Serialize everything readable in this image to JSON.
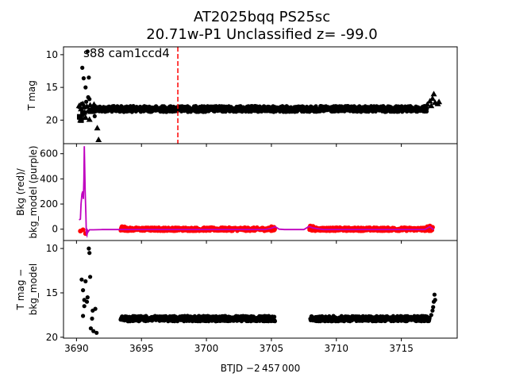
{
  "chart_data": {
    "type": "scatter",
    "title_line1": "AT2025bqq  PS25sc",
    "title_line2": "20.71w-P1 Unclassified z= -99.0",
    "annotation": "s88 cam1ccd4",
    "xlabel": "BTJD −2 457 000",
    "xlim": [
      3689.0,
      3719.3
    ],
    "xticks": [
      3690,
      3695,
      3700,
      3705,
      3710,
      3715
    ],
    "marker_time": 3697.8,
    "colors": {
      "lc": "#000000",
      "bkg": "#ff0000",
      "model": "#bf00bf",
      "marker": "#ff0000"
    },
    "panels": [
      {
        "ylabel": [
          "T mag"
        ],
        "ylim": [
          23.6,
          8.8
        ],
        "yticks": [
          10,
          15,
          20
        ],
        "series": [
          {
            "name": "",
            "marker": "circle",
            "color": "#000000",
            "points": [
              [
                3690.45,
                12.0
              ],
              [
                3690.55,
                13.6
              ],
              [
                3690.7,
                15.0
              ],
              [
                3690.95,
                13.5
              ],
              [
                3691.0,
                16.8
              ],
              [
                3690.85,
                9.5
              ],
              [
                3690.3,
                19.6
              ],
              [
                3690.6,
                19.0
              ],
              [
                3691.4,
                19.4
              ],
              [
                3690.2,
                18.0
              ],
              [
                3691.1,
                18.4
              ],
              [
                3690.75,
                17.2
              ],
              [
                3690.4,
                17.5
              ],
              [
                3690.9,
                16.5
              ],
              [
                3691.2,
                17.9
              ],
              [
                3691.3,
                18.1
              ],
              [
                3690.65,
                18.8
              ],
              [
                3691.5,
                18.0
              ]
            ]
          },
          {
            "name": "",
            "marker": "triangle",
            "color": "#000000",
            "points": [
              [
                3690.2,
                17.8
              ],
              [
                3690.35,
                18.3
              ],
              [
                3690.5,
                17.5
              ],
              [
                3690.6,
                18.8
              ],
              [
                3690.8,
                17.9
              ],
              [
                3690.9,
                18.6
              ],
              [
                3691.05,
                17.7
              ],
              [
                3691.2,
                18.2
              ],
              [
                3691.35,
                17.6
              ],
              [
                3690.4,
                19.2
              ],
              [
                3690.7,
                19.6
              ],
              [
                3691.0,
                19.9
              ],
              [
                3691.6,
                21.2
              ],
              [
                3691.7,
                23.0
              ],
              [
                3690.3,
                20.0
              ],
              [
                3691.5,
                18.0
              ],
              [
                3690.55,
                18.0
              ],
              [
                3691.1,
                18.7
              ]
            ]
          },
          {
            "name": "",
            "marker": "square",
            "color": "#000000",
            "points": [
              [
                3690.25,
                19.5
              ],
              [
                3690.35,
                20.0
              ],
              [
                3690.5,
                18.9
              ]
            ]
          },
          {
            "name": "",
            "marker": "triangle",
            "color": "#000000",
            "points": [
              [
                3717.0,
                17.6
              ],
              [
                3717.2,
                17.1
              ],
              [
                3717.4,
                16.7
              ],
              [
                3717.6,
                17.3
              ],
              [
                3717.8,
                17.5
              ],
              [
                3717.5,
                16.0
              ],
              [
                3717.3,
                17.8
              ],
              [
                3717.9,
                17.2
              ]
            ]
          }
        ],
        "band": {
          "x_start": 3691.3,
          "x_end": 3717.0,
          "y": 18.3,
          "spread": 0.45,
          "label": ""
        }
      },
      {
        "ylabel": [
          "Bkg (red)/",
          "bkg_model (purple)"
        ],
        "ylim": [
          -90,
          680
        ],
        "yticks": [
          0,
          200,
          400,
          600
        ],
        "segments": [
          {
            "x": [
              3693.4,
              3705.3
            ],
            "color": "#ff0000",
            "y": 0,
            "spread": 14
          },
          {
            "x": [
              3707.9,
              3717.4
            ],
            "color": "#ff0000",
            "y": 0,
            "spread": 14
          }
        ],
        "edge_points": [
          [
            3690.3,
            -15
          ],
          [
            3690.5,
            -5
          ],
          [
            3690.7,
            -35
          ],
          [
            3693.5,
            20
          ],
          [
            3693.7,
            18
          ],
          [
            3705.0,
            20
          ],
          [
            3705.2,
            15
          ],
          [
            3708.0,
            25
          ],
          [
            3708.2,
            22
          ],
          [
            3717.0,
            20
          ],
          [
            3717.2,
            25
          ],
          [
            3717.4,
            15
          ]
        ],
        "model_curve": [
          [
            3690.2,
            75
          ],
          [
            3690.3,
            80
          ],
          [
            3690.35,
            200
          ],
          [
            3690.42,
            280
          ],
          [
            3690.48,
            300
          ],
          [
            3690.53,
            240
          ],
          [
            3690.57,
            400
          ],
          [
            3690.6,
            660
          ],
          [
            3690.63,
            500
          ],
          [
            3690.67,
            300
          ],
          [
            3690.72,
            120
          ],
          [
            3690.76,
            -40
          ],
          [
            3690.8,
            -50
          ],
          [
            3690.85,
            -10
          ],
          [
            3690.9,
            -20
          ],
          [
            3691.0,
            -5
          ],
          [
            3691.3,
            -5
          ],
          [
            3692.0,
            -3
          ],
          [
            3693.4,
            -3
          ],
          [
            3694.0,
            -3
          ],
          [
            3700.0,
            -3
          ],
          [
            3704.5,
            -3
          ],
          [
            3705.0,
            8
          ],
          [
            3705.3,
            20
          ],
          [
            3705.6,
            0
          ],
          [
            3706.0,
            -3
          ],
          [
            3707.5,
            -3
          ],
          [
            3707.9,
            22
          ],
          [
            3708.2,
            10
          ],
          [
            3709.0,
            -3
          ],
          [
            3716.8,
            -3
          ],
          [
            3717.2,
            20
          ],
          [
            3717.5,
            -5
          ]
        ]
      },
      {
        "ylabel": [
          "T mag −",
          "bkg_model"
        ],
        "ylim": [
          20.1,
          9.1
        ],
        "yticks": [
          10,
          15,
          20
        ],
        "series": [
          {
            "name": "",
            "marker": "circle",
            "color": "#000000",
            "points": [
              [
                3690.4,
                13.5
              ],
              [
                3690.5,
                14.7
              ],
              [
                3690.6,
                15.8
              ],
              [
                3690.7,
                13.7
              ],
              [
                3690.8,
                16.0
              ],
              [
                3690.85,
                15.5
              ],
              [
                3690.95,
                10.0
              ],
              [
                3691.0,
                10.5
              ],
              [
                3691.05,
                13.2
              ],
              [
                3690.5,
                17.6
              ],
              [
                3690.6,
                16.5
              ],
              [
                3691.2,
                17.9
              ],
              [
                3691.3,
                19.3
              ],
              [
                3691.45,
                16.8
              ],
              [
                3691.55,
                19.5
              ],
              [
                3691.1,
                19.0
              ],
              [
                3691.25,
                17.0
              ]
            ]
          },
          {
            "name": "",
            "marker": "circle",
            "color": "#000000",
            "points": [
              [
                3717.4,
                17.0
              ],
              [
                3717.5,
                16.0
              ],
              [
                3717.55,
                15.2
              ],
              [
                3717.6,
                15.8
              ],
              [
                3717.45,
                16.6
              ],
              [
                3717.3,
                17.5
              ]
            ]
          }
        ],
        "bands": [
          {
            "x_start": 3693.4,
            "x_end": 3705.3,
            "y": 17.9,
            "spread": 0.3
          },
          {
            "x_start": 3708.0,
            "x_end": 3717.2,
            "y": 17.9,
            "spread": 0.3
          }
        ]
      }
    ]
  }
}
